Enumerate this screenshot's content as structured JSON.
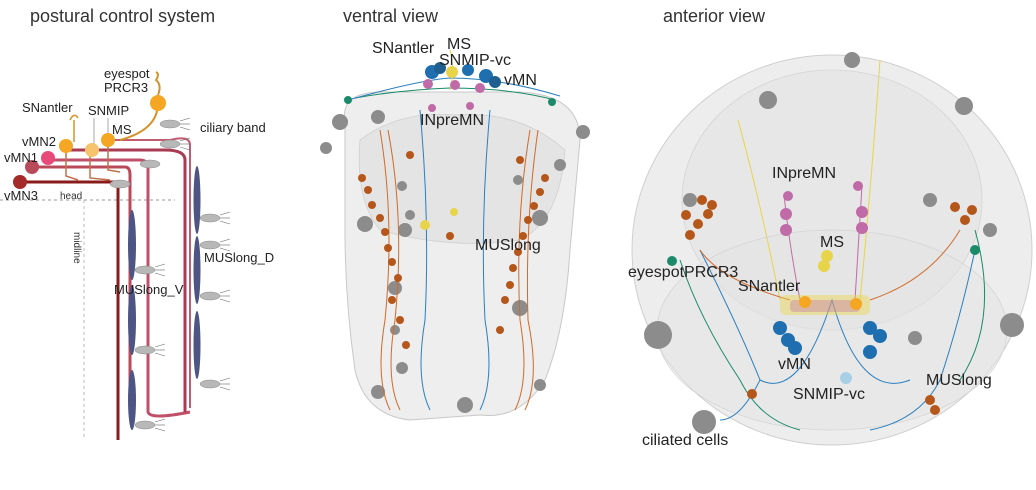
{
  "panels": {
    "schematic": {
      "title": "postural control system",
      "labels": {
        "eyespot": "eyespot",
        "prcr3": "PRCR3",
        "snantler": "SNantler",
        "snmip": "SNMIP",
        "ms": "MS",
        "vmn2": "vMN2",
        "vmn1": "vMN1",
        "vmn3": "vMN3",
        "ciliary_band": "ciliary band",
        "head": "head",
        "midline": "midline",
        "muslong_v": "MUSlong_V",
        "muslong_d": "MUSlong_D"
      }
    },
    "ventral": {
      "title": "ventral view",
      "labels": {
        "snantler": "SNantler",
        "ms": "MS",
        "snmip_vc": "SNMIP-vc",
        "vmn": "vMN",
        "inpremn": "INpreMN",
        "muslong": "MUSlong"
      }
    },
    "anterior": {
      "title": "anterior view",
      "labels": {
        "inpremn": "INpreMN",
        "ms": "MS",
        "eyespot_prcr3": "eyespotPRCR3",
        "snantler": "SNantler",
        "vmn": "vMN",
        "muslong": "MUSlong",
        "snmip_vc": "SNMIP-vc",
        "ciliated_cells": "ciliated cells"
      }
    }
  },
  "colors": {
    "orange": "#f5a623",
    "light_orange": "#f7c36d",
    "pink": "#e84a7a",
    "dark_red": "#a52a2a",
    "crimson": "#9a1f2b",
    "muscle": "#4d5585",
    "cilia_cell": "#b8b8b8",
    "teal": "#1a8a6a",
    "blue": "#1f6fb0",
    "yellow": "#e8d44a",
    "purple": "#c06aa8",
    "brown": "#b5561a",
    "gray_sphere": "#8c8c8c"
  }
}
